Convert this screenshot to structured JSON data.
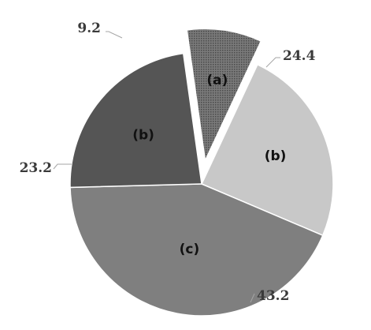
{
  "chart_data": {
    "type": "pie",
    "title": "",
    "start_angle_deg": -8,
    "direction": "clockwise",
    "slices": [
      {
        "category": "(a)",
        "value": 9.2,
        "value_label": "9.2",
        "color": "#6e6e6e",
        "pattern": "dotted",
        "exploded": true
      },
      {
        "category": "(b)",
        "value": 24.4,
        "value_label": "24.4",
        "color": "#c8c8c8",
        "pattern": "solid",
        "exploded": false
      },
      {
        "category": "(c)",
        "value": 43.2,
        "value_label": "43.2",
        "color": "#7f7f7f",
        "pattern": "solid",
        "exploded": false
      },
      {
        "category": "(b)",
        "value": 23.2,
        "value_label": "23.2",
        "color": "#555555",
        "pattern": "solid",
        "exploded": false
      }
    ]
  }
}
